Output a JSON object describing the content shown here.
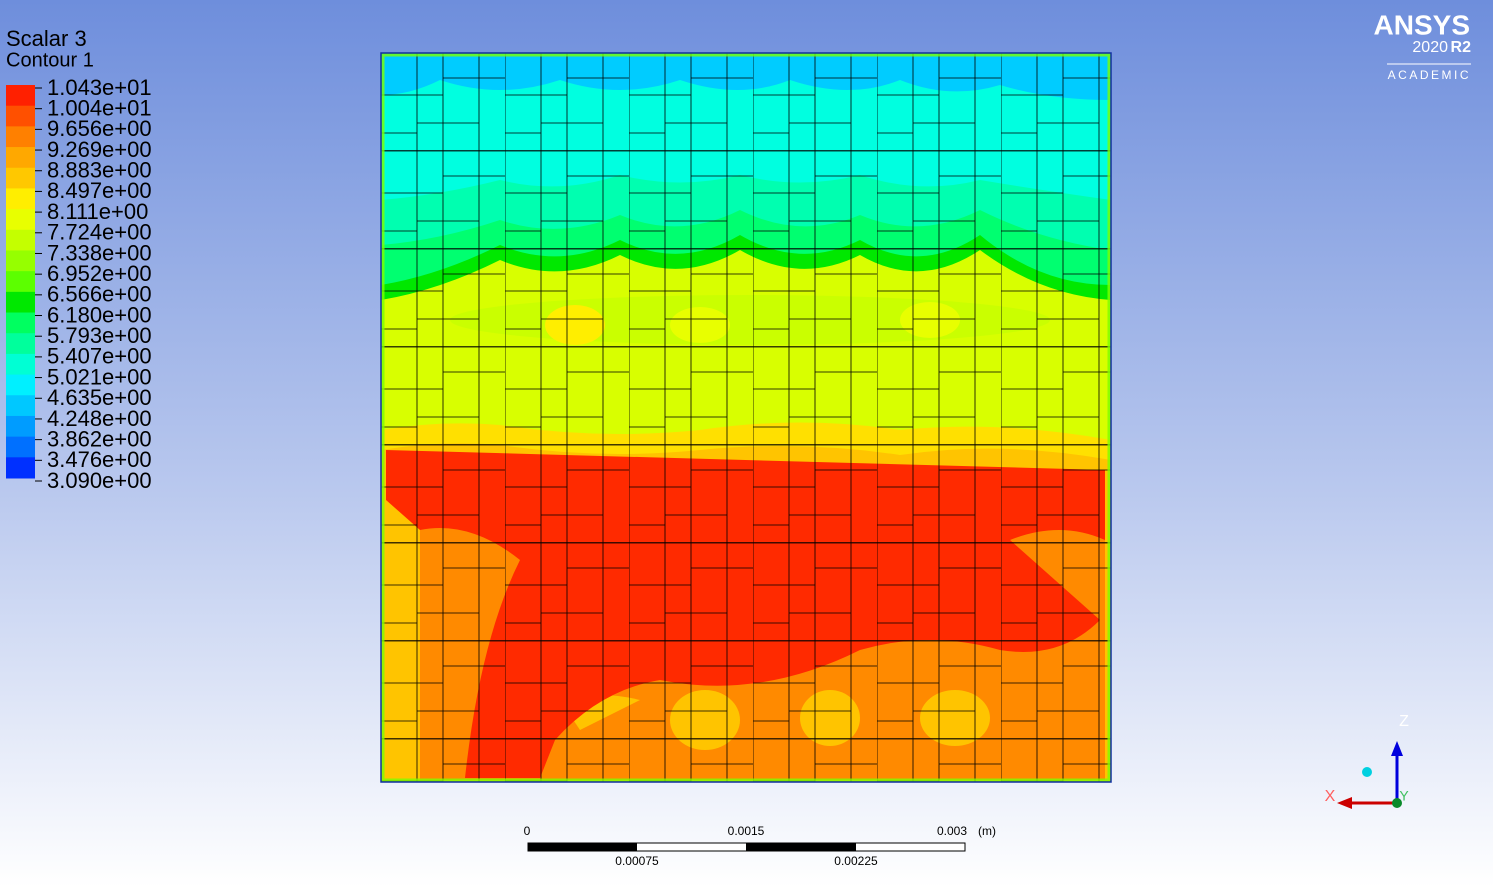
{
  "legend": {
    "title": "Scalar 3",
    "subtitle": "Contour 1",
    "labels": [
      "1.043e+01",
      "1.004e+01",
      "9.656e+00",
      "9.269e+00",
      "8.883e+00",
      "8.497e+00",
      "8.111e+00",
      "7.724e+00",
      "7.338e+00",
      "6.952e+00",
      "6.566e+00",
      "6.180e+00",
      "5.793e+00",
      "5.407e+00",
      "5.021e+00",
      "4.635e+00",
      "4.248e+00",
      "3.862e+00",
      "3.476e+00",
      "3.090e+00"
    ],
    "colors": [
      "#ff2000",
      "#ff5000",
      "#ff8000",
      "#ffa800",
      "#ffc800",
      "#ffee00",
      "#e8ff00",
      "#c4ff00",
      "#96ff00",
      "#5cff00",
      "#00e800",
      "#00ff60",
      "#00ff9c",
      "#00ffd4",
      "#00f0ff",
      "#00c8ff",
      "#009cff",
      "#0070ff",
      "#0030ff"
    ]
  },
  "logo": {
    "brand": "ANSYS",
    "year": "2020",
    "release": "R2",
    "edition": "ACADEMIC"
  },
  "scale_bar": {
    "upper_labels": [
      "0",
      "0.0015",
      "0.003"
    ],
    "unit": "(m)",
    "lower_labels": [
      "0.00075",
      "0.00225"
    ]
  },
  "triad": {
    "z": "Z",
    "x": "X",
    "y": "Y"
  }
}
